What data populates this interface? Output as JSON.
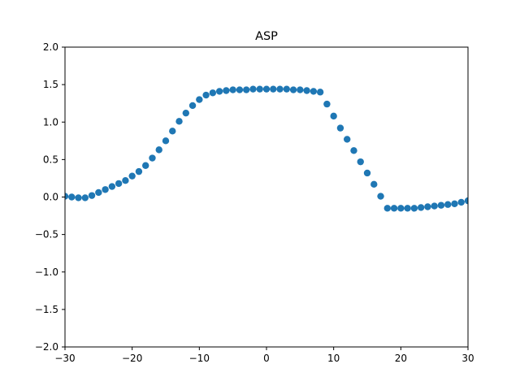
{
  "chart_data": {
    "type": "scatter",
    "title": "ASP",
    "xlabel": "",
    "ylabel": "",
    "xlim": [
      -30,
      30
    ],
    "ylim": [
      -2.0,
      2.0
    ],
    "xticks": [
      -30,
      -20,
      -10,
      0,
      10,
      20,
      30
    ],
    "xtick_labels": [
      "−30",
      "−20",
      "−10",
      "0",
      "10",
      "20",
      "30"
    ],
    "yticks": [
      -2.0,
      -1.5,
      -1.0,
      -0.5,
      0.0,
      0.5,
      1.0,
      1.5,
      2.0
    ],
    "ytick_labels": [
      "−2.0",
      "−1.5",
      "−1.0",
      "−0.5",
      "0.0",
      "0.5",
      "1.0",
      "1.5",
      "2.0"
    ],
    "grid": false,
    "marker_color": "#1f77b4",
    "series": [
      {
        "x": [
          -30,
          -29,
          -28,
          -27,
          -26,
          -25,
          -24,
          -23,
          -22,
          -21,
          -20,
          -19,
          -18,
          -17,
          -16,
          -15,
          -14,
          -13,
          -12,
          -11,
          -10,
          -9,
          -8,
          -7,
          -6,
          -5,
          -4,
          -3,
          -2,
          -1,
          0,
          1,
          2,
          3,
          4,
          5,
          6,
          7,
          8,
          9,
          10,
          11,
          12,
          13,
          14,
          15,
          16,
          17,
          18,
          19,
          20,
          21,
          22,
          23,
          24,
          25,
          26,
          27,
          28,
          29,
          30
        ],
        "y": [
          0.01,
          0.0,
          -0.01,
          -0.01,
          0.02,
          0.06,
          0.1,
          0.14,
          0.18,
          0.22,
          0.28,
          0.34,
          0.42,
          0.52,
          0.63,
          0.75,
          0.88,
          1.01,
          1.12,
          1.22,
          1.3,
          1.36,
          1.39,
          1.41,
          1.42,
          1.43,
          1.43,
          1.43,
          1.44,
          1.44,
          1.44,
          1.44,
          1.44,
          1.44,
          1.43,
          1.43,
          1.42,
          1.41,
          1.4,
          1.24,
          1.08,
          0.92,
          0.77,
          0.62,
          0.47,
          0.32,
          0.17,
          0.01,
          -0.15,
          -0.15,
          -0.15,
          -0.15,
          -0.15,
          -0.14,
          -0.13,
          -0.12,
          -0.11,
          -0.1,
          -0.09,
          -0.07,
          -0.05
        ]
      }
    ]
  }
}
